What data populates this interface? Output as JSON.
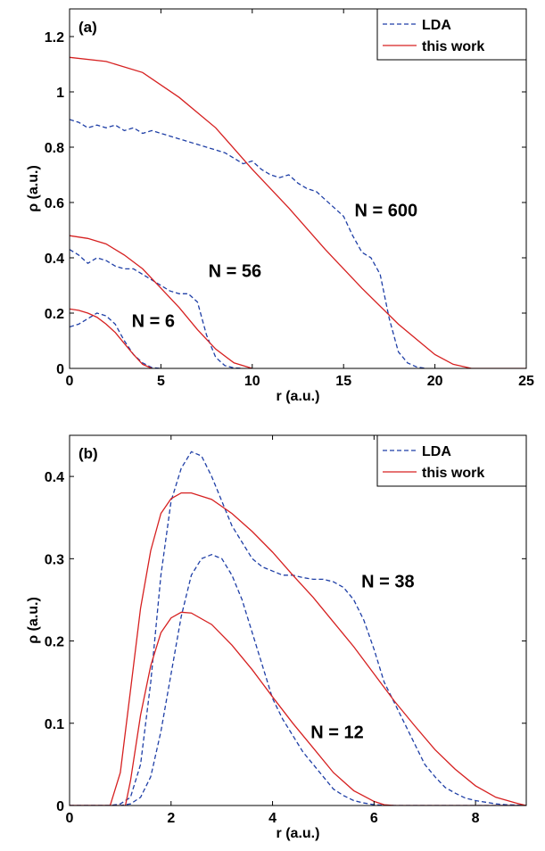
{
  "chart_data": [
    {
      "type": "line",
      "panel_label": "(a)",
      "xlabel": "r (a.u.)",
      "ylabel": "ρ (a.u.)",
      "xlim": [
        0,
        25
      ],
      "ylim": [
        0,
        1.3
      ],
      "xticks": [
        0,
        5,
        10,
        15,
        20,
        25
      ],
      "xtick_labels": [
        "0",
        "5",
        "10",
        "15",
        "20",
        "25"
      ],
      "yticks": [
        0,
        0.2,
        0.4,
        0.6,
        0.8,
        1,
        1.2
      ],
      "ytick_labels": [
        "0",
        "0.2",
        "0.4",
        "0.6",
        "0.8",
        "1",
        "1.2"
      ],
      "grid": false,
      "legend": {
        "placement": "top-right",
        "entries": [
          "LDA",
          "this work"
        ]
      },
      "style": {
        "LDA": {
          "color": "#1f3fa6",
          "dash": true
        },
        "this work": {
          "color": "#d62020",
          "dash": false
        }
      },
      "annotations": [
        {
          "text": "N = 600",
          "x": 15.6,
          "y": 0.55
        },
        {
          "text": "N = 56",
          "x": 7.6,
          "y": 0.33
        },
        {
          "text": "N = 6",
          "x": 3.4,
          "y": 0.15
        }
      ],
      "series": [
        {
          "name": "LDA",
          "group": "N = 600",
          "x": [
            0,
            0.5,
            1,
            1.5,
            2,
            2.5,
            3,
            3.5,
            4,
            4.5,
            5,
            5.5,
            6,
            6.5,
            7,
            7.5,
            8,
            8.5,
            9,
            9.5,
            10,
            10.5,
            11,
            11.5,
            12,
            12.5,
            13,
            13.5,
            14,
            14.5,
            15,
            15.5,
            16,
            16.5,
            17,
            17.5,
            18,
            18.5,
            19,
            19.5
          ],
          "y": [
            0.9,
            0.89,
            0.87,
            0.88,
            0.87,
            0.88,
            0.86,
            0.87,
            0.85,
            0.86,
            0.85,
            0.84,
            0.83,
            0.82,
            0.81,
            0.8,
            0.79,
            0.78,
            0.76,
            0.74,
            0.75,
            0.72,
            0.7,
            0.69,
            0.7,
            0.67,
            0.65,
            0.64,
            0.61,
            0.58,
            0.55,
            0.48,
            0.42,
            0.4,
            0.34,
            0.18,
            0.06,
            0.02,
            0.005,
            0
          ]
        },
        {
          "name": "LDA",
          "group": "N = 56",
          "x": [
            0,
            0.5,
            1,
            1.5,
            2,
            2.5,
            3,
            3.5,
            4,
            4.5,
            5,
            5.5,
            6,
            6.5,
            7,
            7.5,
            8,
            8.5,
            9,
            9.5
          ],
          "y": [
            0.43,
            0.41,
            0.38,
            0.4,
            0.39,
            0.37,
            0.36,
            0.36,
            0.34,
            0.32,
            0.3,
            0.28,
            0.27,
            0.27,
            0.24,
            0.12,
            0.04,
            0.01,
            0.002,
            0
          ]
        },
        {
          "name": "LDA",
          "group": "N = 6",
          "x": [
            0,
            0.5,
            1,
            1.5,
            2,
            2.5,
            3,
            3.5,
            4,
            4.5,
            5
          ],
          "y": [
            0.15,
            0.16,
            0.18,
            0.2,
            0.19,
            0.16,
            0.1,
            0.05,
            0.02,
            0.003,
            0
          ]
        },
        {
          "name": "this work",
          "group": "N = 600",
          "x": [
            0,
            2,
            4,
            6,
            8,
            10,
            12,
            14,
            16,
            18,
            20,
            21,
            22,
            25
          ],
          "y": [
            1.125,
            1.11,
            1.07,
            0.98,
            0.87,
            0.72,
            0.58,
            0.43,
            0.29,
            0.16,
            0.05,
            0.015,
            0,
            0
          ]
        },
        {
          "name": "this work",
          "group": "N = 56",
          "x": [
            0,
            1,
            2,
            3,
            4,
            5,
            6,
            7,
            8,
            9,
            10
          ],
          "y": [
            0.48,
            0.47,
            0.45,
            0.41,
            0.36,
            0.29,
            0.22,
            0.14,
            0.07,
            0.02,
            0
          ]
        },
        {
          "name": "this work",
          "group": "N = 6",
          "x": [
            0,
            0.5,
            1,
            1.5,
            2,
            2.5,
            3,
            3.5,
            4,
            4.5
          ],
          "y": [
            0.215,
            0.21,
            0.2,
            0.185,
            0.16,
            0.13,
            0.09,
            0.05,
            0.015,
            0
          ]
        }
      ]
    },
    {
      "type": "line",
      "panel_label": "(b)",
      "xlabel": "r (a.u.)",
      "ylabel": "ρ (a.u.)",
      "xlim": [
        0,
        9
      ],
      "ylim": [
        0,
        0.45
      ],
      "xticks": [
        0,
        2,
        4,
        6,
        8
      ],
      "xtick_labels": [
        "0",
        "2",
        "4",
        "6",
        "8"
      ],
      "yticks": [
        0,
        0.1,
        0.2,
        0.3,
        0.4
      ],
      "ytick_labels": [
        "0",
        "0.1",
        "0.2",
        "0.3",
        "0.4"
      ],
      "grid": false,
      "legend": {
        "placement": "top-right",
        "entries": [
          "LDA",
          "this work"
        ]
      },
      "style": {
        "LDA": {
          "color": "#1f3fa6",
          "dash": true
        },
        "this work": {
          "color": "#d62020",
          "dash": false
        }
      },
      "annotations": [
        {
          "text": "N = 38",
          "x": 5.75,
          "y": 0.265
        },
        {
          "text": "N = 12",
          "x": 4.75,
          "y": 0.082
        }
      ],
      "series": [
        {
          "name": "LDA",
          "group": "N = 38",
          "x": [
            0,
            0.8,
            1.0,
            1.2,
            1.4,
            1.6,
            1.8,
            2.0,
            2.2,
            2.4,
            2.6,
            2.8,
            3.0,
            3.2,
            3.4,
            3.6,
            3.8,
            4.0,
            4.2,
            4.4,
            4.6,
            4.8,
            5.0,
            5.2,
            5.4,
            5.6,
            5.8,
            6.0,
            6.2,
            6.4,
            6.6,
            6.8,
            7.0,
            7.2,
            7.4,
            7.6,
            7.8,
            8.0,
            8.2,
            8.4,
            8.6,
            8.8,
            9.0
          ],
          "y": [
            0,
            0,
            0.002,
            0.01,
            0.05,
            0.15,
            0.28,
            0.37,
            0.41,
            0.43,
            0.425,
            0.4,
            0.37,
            0.34,
            0.32,
            0.3,
            0.29,
            0.285,
            0.28,
            0.28,
            0.277,
            0.275,
            0.275,
            0.272,
            0.265,
            0.25,
            0.225,
            0.19,
            0.15,
            0.125,
            0.1,
            0.075,
            0.05,
            0.035,
            0.022,
            0.015,
            0.009,
            0.006,
            0.004,
            0.002,
            0.001,
            0.0005,
            0
          ]
        },
        {
          "name": "LDA",
          "group": "N = 12",
          "x": [
            0,
            1.0,
            1.2,
            1.4,
            1.6,
            1.8,
            2.0,
            2.2,
            2.4,
            2.6,
            2.8,
            3.0,
            3.2,
            3.4,
            3.6,
            3.8,
            4.0,
            4.2,
            4.4,
            4.6,
            4.8,
            5.0,
            5.2,
            5.4,
            5.6,
            5.8,
            6.0,
            6.2,
            6.4,
            9.0
          ],
          "y": [
            0,
            0,
            0.002,
            0.01,
            0.035,
            0.09,
            0.16,
            0.23,
            0.28,
            0.3,
            0.305,
            0.3,
            0.28,
            0.25,
            0.21,
            0.17,
            0.13,
            0.105,
            0.085,
            0.065,
            0.05,
            0.035,
            0.02,
            0.012,
            0.006,
            0.003,
            0.001,
            0.0003,
            0,
            0
          ]
        },
        {
          "name": "this work",
          "group": "N = 38",
          "x": [
            0,
            0.8,
            1.0,
            1.2,
            1.4,
            1.6,
            1.8,
            2.0,
            2.2,
            2.4,
            2.8,
            3.2,
            3.6,
            4.0,
            4.4,
            4.8,
            5.2,
            5.6,
            6.0,
            6.4,
            6.8,
            7.2,
            7.6,
            8.0,
            8.4,
            8.8,
            9.0
          ],
          "y": [
            0,
            0,
            0.04,
            0.14,
            0.24,
            0.31,
            0.355,
            0.373,
            0.38,
            0.38,
            0.372,
            0.355,
            0.333,
            0.308,
            0.28,
            0.253,
            0.223,
            0.193,
            0.16,
            0.127,
            0.097,
            0.068,
            0.044,
            0.024,
            0.01,
            0.003,
            0
          ]
        },
        {
          "name": "this work",
          "group": "N = 12",
          "x": [
            0,
            1.1,
            1.2,
            1.4,
            1.6,
            1.8,
            2.0,
            2.2,
            2.4,
            2.8,
            3.2,
            3.6,
            4.0,
            4.4,
            4.8,
            5.2,
            5.6,
            6.0,
            6.2,
            6.4,
            9.0
          ],
          "y": [
            0,
            0,
            0.03,
            0.11,
            0.17,
            0.21,
            0.228,
            0.235,
            0.234,
            0.22,
            0.195,
            0.165,
            0.132,
            0.1,
            0.07,
            0.04,
            0.018,
            0.005,
            0.001,
            0,
            0
          ]
        }
      ]
    }
  ]
}
